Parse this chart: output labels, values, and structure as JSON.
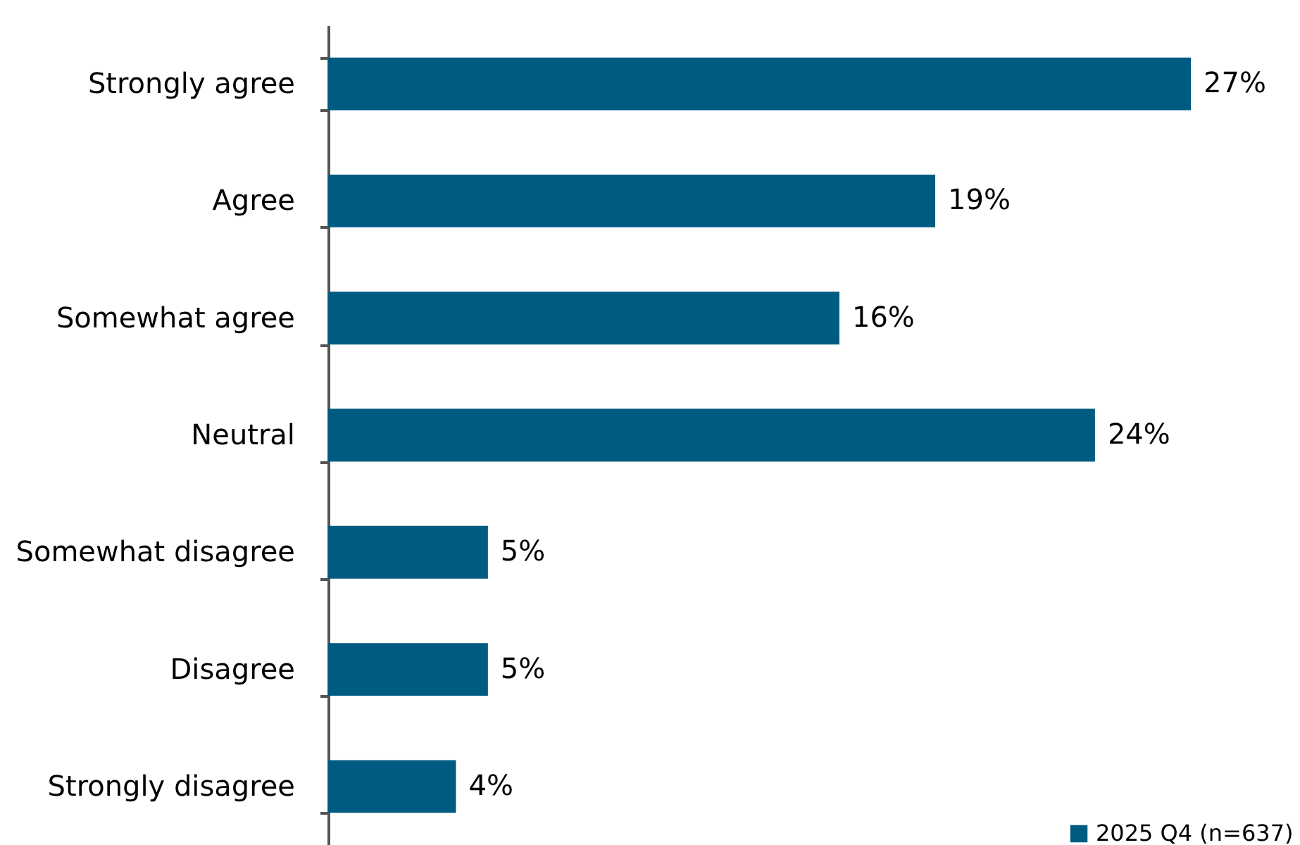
{
  "chart_data": {
    "type": "bar",
    "orientation": "horizontal",
    "categories": [
      "Strongly agree",
      "Agree",
      "Somewhat agree",
      "Neutral",
      "Somewhat disagree",
      "Disagree",
      "Strongly disagree"
    ],
    "series": [
      {
        "name": "2025 Q4 (n=637)",
        "color": "#005b82",
        "values": [
          27,
          19,
          16,
          24,
          5,
          5,
          4
        ],
        "value_labels": [
          "27%",
          "19%",
          "16%",
          "24%",
          "5%",
          "5%",
          "4%"
        ]
      }
    ],
    "legend": "bottom right"
  }
}
